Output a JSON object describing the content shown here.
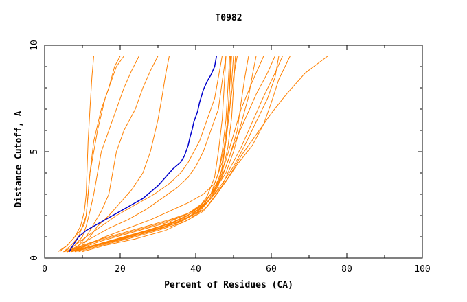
{
  "chart_data": {
    "type": "line",
    "title": "T0982",
    "xlabel": "Percent of Residues (CA)",
    "ylabel": "Distance Cutoff, A",
    "xlim": [
      0,
      100
    ],
    "ylim": [
      0,
      10
    ],
    "x_ticks": [
      "0",
      "20",
      "40",
      "60",
      "80",
      "100"
    ],
    "y_ticks": [
      "0",
      "5",
      "10"
    ],
    "x_tick_values": [
      0,
      20,
      40,
      60,
      80,
      100
    ],
    "y_tick_values": [
      0,
      5,
      10
    ],
    "grid": false,
    "colors": {
      "highlight": "#0000cc",
      "others": "#ff8000",
      "axes": "#000000"
    },
    "highlight_series": {
      "x": [
        6.5,
        7.5,
        9,
        11,
        14,
        17,
        20,
        23,
        26,
        28,
        30,
        32,
        34,
        36,
        37,
        38,
        38.5,
        39,
        39.5,
        40.5,
        41,
        42,
        43,
        44,
        45,
        45.5
      ],
      "y": [
        0.3,
        0.6,
        1,
        1.3,
        1.6,
        1.9,
        2.2,
        2.5,
        2.8,
        3.1,
        3.4,
        3.8,
        4.2,
        4.5,
        4.8,
        5.3,
        5.7,
        6,
        6.4,
        6.9,
        7.3,
        7.9,
        8.3,
        8.6,
        9,
        9.5
      ]
    },
    "series": [
      {
        "x": [
          4,
          6,
          8,
          9.5,
          10.5,
          11,
          11.2,
          11.5,
          12,
          12.5,
          13
        ],
        "y": [
          0.3,
          0.6,
          1,
          1.5,
          2.2,
          3,
          4,
          5.5,
          7,
          8.5,
          9.5
        ]
      },
      {
        "x": [
          3.5,
          6,
          8,
          9.5,
          10.5,
          11,
          11.5,
          12,
          13,
          15,
          17,
          18.5,
          20
        ],
        "y": [
          0.3,
          0.6,
          1,
          1.3,
          1.6,
          2,
          3,
          4,
          5.5,
          7,
          8,
          9,
          9.5
        ]
      },
      {
        "x": [
          5,
          7,
          9,
          10,
          11,
          11.5,
          12,
          13,
          14,
          16,
          18,
          19,
          21
        ],
        "y": [
          0.3,
          0.6,
          1,
          1.5,
          2,
          3,
          4,
          5,
          6,
          7.5,
          8.5,
          9,
          9.5
        ]
      },
      {
        "x": [
          6,
          8,
          10,
          11,
          12,
          13,
          14,
          15,
          17,
          19,
          21,
          23,
          25
        ],
        "y": [
          0.3,
          0.6,
          1,
          1.5,
          2.2,
          3,
          4,
          5,
          6,
          7,
          8,
          8.8,
          9.5
        ]
      },
      {
        "x": [
          7,
          9,
          11,
          13,
          15,
          17,
          18,
          19,
          21,
          24,
          26,
          28,
          30
        ],
        "y": [
          0.3,
          0.6,
          1,
          1.6,
          2.2,
          3,
          4,
          5,
          6,
          7,
          8,
          8.8,
          9.5
        ]
      },
      {
        "x": [
          8,
          10,
          12,
          14,
          17,
          20,
          23,
          26,
          28,
          30,
          31,
          32,
          33
        ],
        "y": [
          0.3,
          0.6,
          1,
          1.5,
          2,
          2.6,
          3.2,
          4,
          5,
          6.5,
          7.5,
          8.6,
          9.5
        ]
      },
      {
        "x": [
          5,
          8,
          11,
          15,
          19,
          24,
          29,
          33,
          36,
          38,
          41,
          43,
          45,
          46,
          47
        ],
        "y": [
          0.3,
          0.6,
          1,
          1.5,
          2,
          2.5,
          3,
          3.5,
          4,
          4.5,
          5.5,
          6.5,
          7.5,
          8.5,
          9.5
        ]
      },
      {
        "x": [
          6,
          9,
          13,
          17,
          22,
          27,
          31,
          35,
          38,
          40,
          42,
          44,
          46,
          47,
          48
        ],
        "y": [
          0.3,
          0.6,
          1,
          1.4,
          1.8,
          2.3,
          2.8,
          3.3,
          3.8,
          4.3,
          5,
          6,
          7,
          8.3,
          9.5
        ]
      },
      {
        "x": [
          7,
          11,
          16,
          22,
          28,
          33,
          38,
          42,
          45,
          47,
          48,
          49,
          50,
          51
        ],
        "y": [
          0.3,
          0.6,
          1,
          1.4,
          1.8,
          2.2,
          2.6,
          3,
          3.5,
          4.5,
          5.5,
          7,
          8.5,
          9.5
        ]
      },
      {
        "x": [
          6,
          10,
          15,
          21,
          27,
          33,
          38,
          42,
          44,
          46,
          47,
          48,
          48.5,
          49
        ],
        "y": [
          0.3,
          0.6,
          0.9,
          1.2,
          1.5,
          1.8,
          2.1,
          2.5,
          3,
          4,
          5,
          6.5,
          8,
          9.5
        ]
      },
      {
        "x": [
          5,
          9,
          14,
          20,
          26,
          32,
          37,
          41,
          43,
          45,
          46,
          47,
          47.5,
          48
        ],
        "y": [
          0.3,
          0.5,
          0.8,
          1.1,
          1.4,
          1.7,
          2,
          2.4,
          2.9,
          3.8,
          5,
          6.5,
          8,
          9.5
        ]
      },
      {
        "x": [
          8,
          12,
          17,
          23,
          29,
          35,
          40,
          43,
          45,
          47,
          48,
          49,
          49.5,
          50
        ],
        "y": [
          0.3,
          0.5,
          0.8,
          1.1,
          1.4,
          1.7,
          2.1,
          2.6,
          3.2,
          4.2,
          5.5,
          7,
          8.3,
          9.5
        ]
      },
      {
        "x": [
          6,
          11,
          16,
          22,
          28,
          34,
          39,
          42,
          44,
          46,
          47.5,
          48.5,
          49,
          49.5
        ],
        "y": [
          0.3,
          0.5,
          0.7,
          1,
          1.3,
          1.6,
          2,
          2.5,
          3,
          4,
          5.2,
          6.6,
          8,
          9.5
        ]
      },
      {
        "x": [
          7,
          12,
          18,
          25,
          31,
          37,
          41,
          44,
          46,
          47,
          48,
          48.5,
          49,
          49.2
        ],
        "y": [
          0.3,
          0.5,
          0.8,
          1.1,
          1.4,
          1.8,
          2.3,
          2.8,
          3.4,
          4.3,
          5.5,
          6.8,
          8.2,
          9.5
        ]
      },
      {
        "x": [
          5,
          10,
          15,
          21,
          27,
          33,
          38,
          42,
          45,
          47,
          48.5,
          49.5,
          50,
          50.5
        ],
        "y": [
          0.3,
          0.5,
          0.8,
          1.1,
          1.4,
          1.7,
          2.1,
          2.6,
          3.2,
          4,
          5.2,
          6.6,
          8,
          9.5
        ]
      },
      {
        "x": [
          6,
          11,
          17,
          24,
          31,
          37,
          41,
          44,
          47,
          49,
          51,
          52,
          53,
          54
        ],
        "y": [
          0.3,
          0.5,
          0.8,
          1.1,
          1.5,
          1.9,
          2.4,
          3,
          3.8,
          4.8,
          6,
          7.3,
          8.5,
          9.5
        ]
      },
      {
        "x": [
          7,
          12,
          18,
          25,
          32,
          38,
          42,
          45,
          48,
          50,
          52,
          54,
          55,
          56
        ],
        "y": [
          0.3,
          0.5,
          0.8,
          1.1,
          1.5,
          2,
          2.6,
          3.2,
          4,
          5,
          6.3,
          7.6,
          8.6,
          9.5
        ]
      },
      {
        "x": [
          6,
          11,
          17,
          24,
          31,
          37,
          41,
          44,
          46,
          48,
          50,
          52,
          55,
          58
        ],
        "y": [
          0.3,
          0.5,
          0.8,
          1.1,
          1.5,
          1.9,
          2.4,
          3,
          3.7,
          4.6,
          5.8,
          7,
          8.3,
          9.5
        ]
      },
      {
        "x": [
          8,
          14,
          21,
          29,
          36,
          41,
          44,
          46,
          48,
          50,
          53,
          56,
          59,
          61
        ],
        "y": [
          0.3,
          0.6,
          0.9,
          1.3,
          1.7,
          2.2,
          2.8,
          3.5,
          4.3,
          5.3,
          6.5,
          7.7,
          8.7,
          9.5
        ]
      },
      {
        "x": [
          7,
          13,
          20,
          27,
          34,
          40,
          44,
          47,
          49,
          52,
          55,
          58,
          61,
          63
        ],
        "y": [
          0.3,
          0.6,
          0.9,
          1.3,
          1.7,
          2.2,
          2.8,
          3.4,
          4.2,
          5.2,
          6.4,
          7.6,
          8.7,
          9.5
        ]
      },
      {
        "x": [
          9,
          15,
          22,
          30,
          37,
          42,
          45,
          48,
          51,
          55,
          58,
          60,
          62,
          65
        ],
        "y": [
          0.3,
          0.6,
          0.9,
          1.3,
          1.7,
          2.2,
          2.9,
          3.6,
          4.4,
          5.3,
          6.3,
          7.3,
          8.4,
          9.5
        ]
      },
      {
        "x": [
          8,
          14,
          21,
          29,
          36,
          41,
          44,
          47,
          50,
          53,
          56,
          59,
          61,
          62
        ],
        "y": [
          0.3,
          0.6,
          0.9,
          1.3,
          1.7,
          2.2,
          2.8,
          3.5,
          4.3,
          5.3,
          6.4,
          7.5,
          8.5,
          9.5
        ]
      },
      {
        "x": [
          10,
          16,
          24,
          32,
          38,
          43,
          46,
          49,
          52,
          56,
          60,
          64,
          69,
          75
        ],
        "y": [
          0.3,
          0.6,
          0.9,
          1.3,
          1.8,
          2.4,
          3.1,
          3.9,
          4.8,
          5.8,
          6.8,
          7.7,
          8.7,
          9.5
        ]
      }
    ]
  }
}
